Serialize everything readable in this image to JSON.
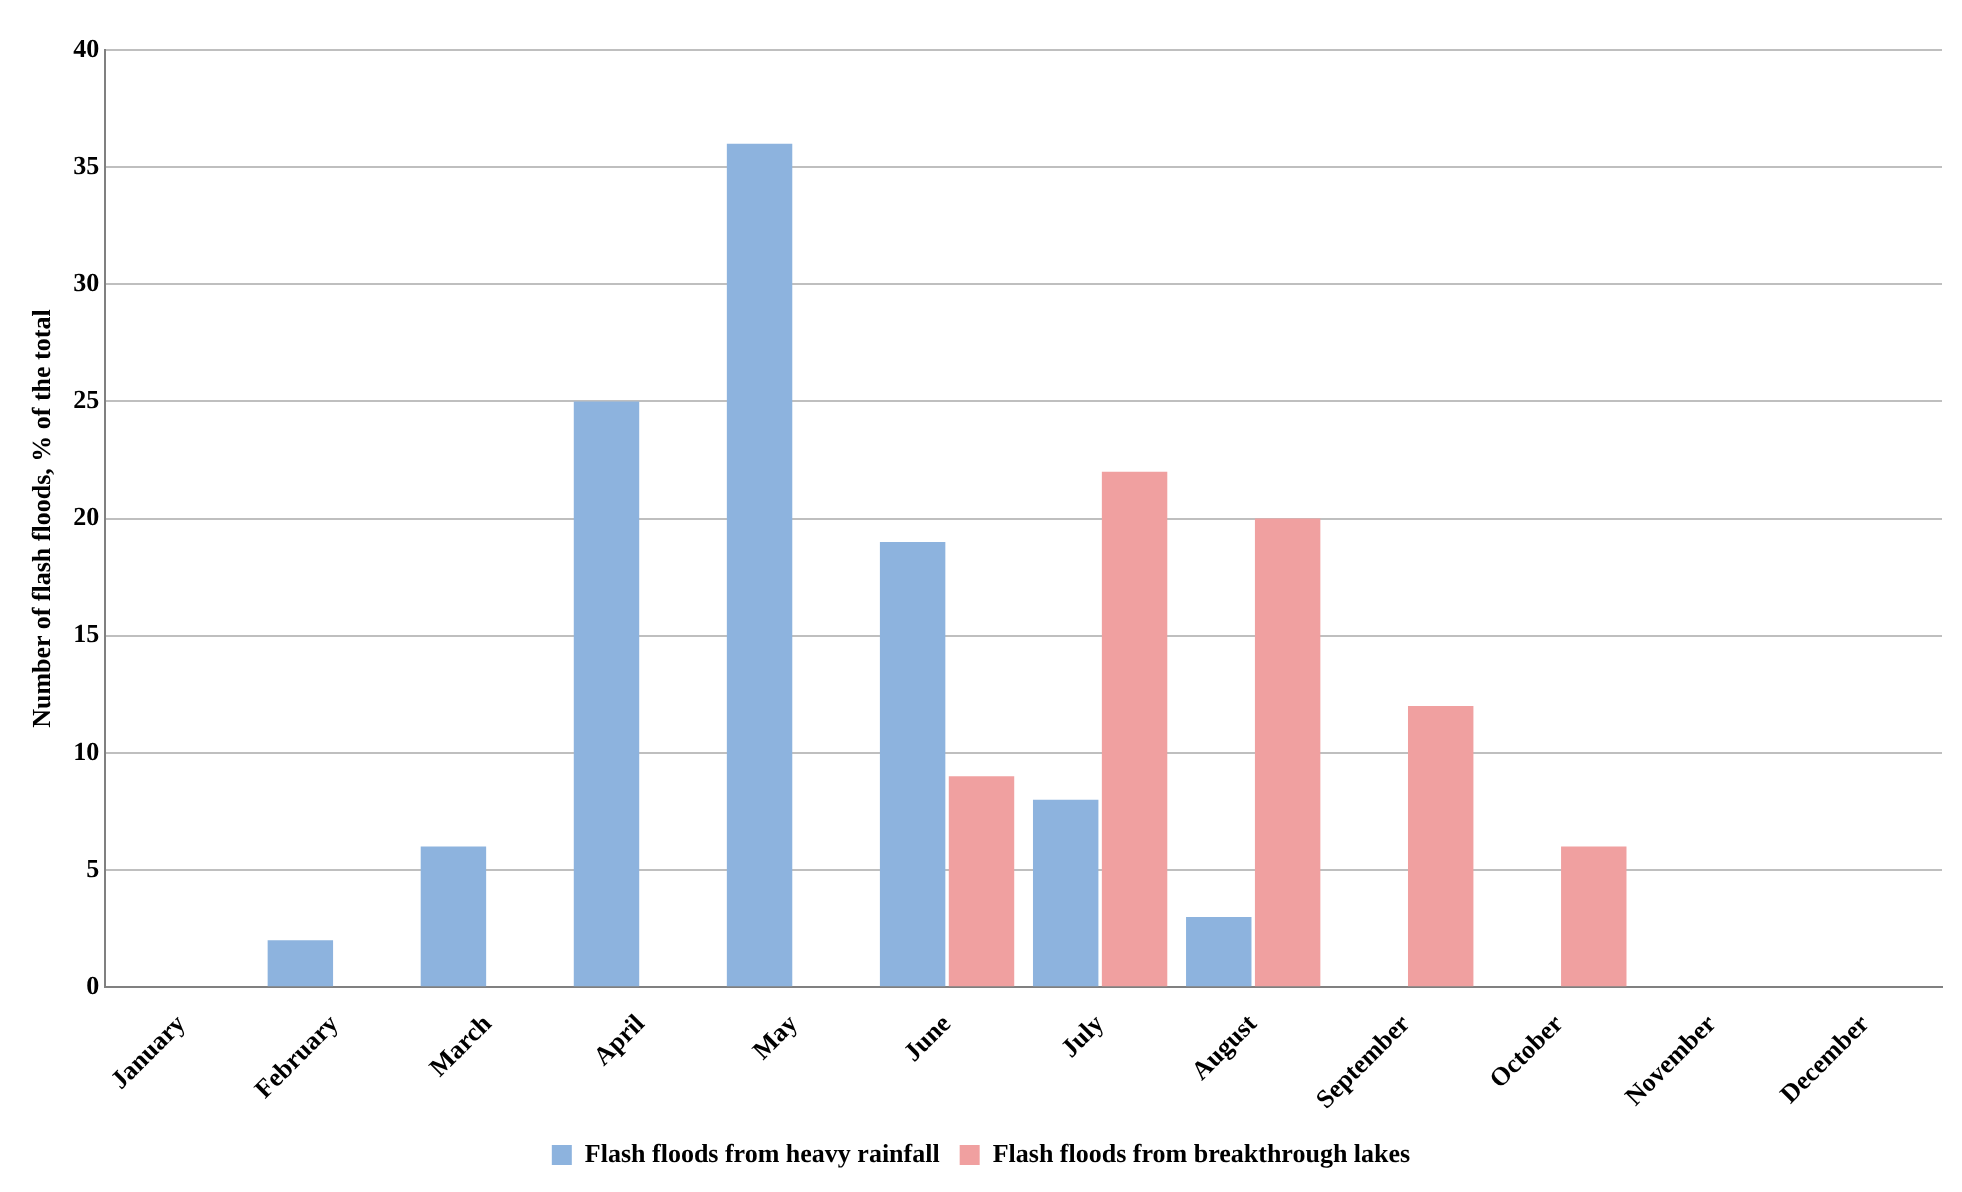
{
  "chart_data": {
    "type": "bar",
    "ylabel": "Number of flash floods, % of the total",
    "categories": [
      "January",
      "February",
      "March",
      "April",
      "May",
      "June",
      "July",
      "August",
      "September",
      "October",
      "November",
      "December"
    ],
    "series": [
      {
        "name": "Flash floods from heavy rainfall",
        "color": "#8db3de",
        "values": [
          0,
          2,
          6,
          25,
          36,
          19,
          8,
          3,
          0,
          0,
          0,
          0
        ]
      },
      {
        "name": "Flash floods from breakthrough lakes",
        "color": "#f0a0a0",
        "values": [
          0,
          0,
          0,
          0,
          0,
          9,
          22,
          20,
          12,
          6,
          0,
          0
        ]
      }
    ],
    "ylim": [
      0,
      40
    ],
    "yticks": [
      0,
      5,
      10,
      15,
      20,
      25,
      30,
      35,
      40
    ],
    "grid": "y",
    "legend": "bottom"
  }
}
